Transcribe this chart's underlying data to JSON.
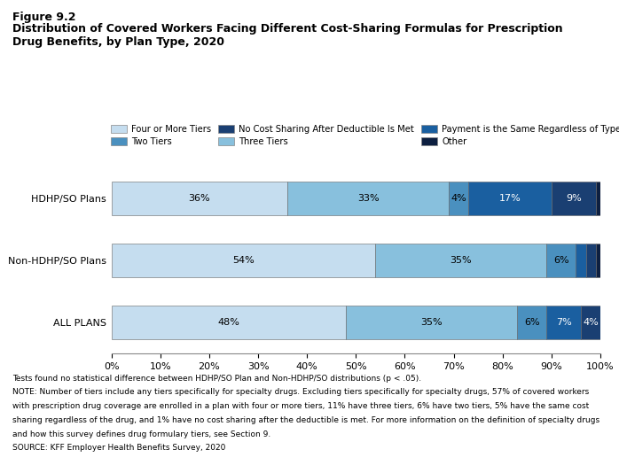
{
  "figure_label": "Figure 9.2",
  "title_line1": "Distribution of Covered Workers Facing Different Cost-Sharing Formulas for Prescription",
  "title_line2": "Drug Benefits, by Plan Type, 2020",
  "plans": [
    "HDHP/SO Plans",
    "Non-HDHP/SO Plans",
    "ALL PLANS"
  ],
  "categories": [
    "Four or More Tiers",
    "Three Tiers",
    "Two Tiers",
    "Payment is the Same Regardless of Type of Drug",
    "No Cost Sharing After Deductible Is Met",
    "Other"
  ],
  "colors": [
    "#c5ddef",
    "#88c0dd",
    "#4a90bf",
    "#1a5fa0",
    "#1a3f72",
    "#0d1f40"
  ],
  "data": {
    "HDHP/SO Plans": [
      36,
      33,
      4,
      17,
      9,
      1
    ],
    "Non-HDHP/SO Plans": [
      54,
      35,
      6,
      2,
      2,
      1
    ],
    "ALL PLANS": [
      48,
      35,
      6,
      7,
      4,
      0
    ]
  },
  "bar_labels": {
    "HDHP/SO Plans": [
      "36%",
      "33%",
      "4%",
      "17%",
      "9%",
      ""
    ],
    "Non-HDHP/SO Plans": [
      "54%",
      "35%",
      "6%",
      "",
      "",
      ""
    ],
    "ALL PLANS": [
      "48%",
      "35%",
      "6%",
      "7%",
      "4%",
      ""
    ]
  },
  "label_colors": {
    "HDHP/SO Plans": [
      "black",
      "black",
      "black",
      "white",
      "white",
      "white"
    ],
    "Non-HDHP/SO Plans": [
      "black",
      "black",
      "black",
      "white",
      "white",
      "white"
    ],
    "ALL PLANS": [
      "black",
      "black",
      "black",
      "white",
      "white",
      "white"
    ]
  },
  "notes": [
    "Tests found no statistical difference between HDHP/SO Plan and Non-HDHP/SO distributions (p < .05).",
    "NOTE: Number of tiers include any tiers specifically for specialty drugs. Excluding tiers specifically for specialty drugs, 57% of covered workers",
    "with prescription drug coverage are enrolled in a plan with four or more tiers, 11% have three tiers, 6% have two tiers, 5% have the same cost",
    "sharing regardless of the drug, and 1% have no cost sharing after the deductible is met. For more information on the definition of specialty drugs",
    "and how this survey defines drug formulary tiers, see Section 9.",
    "SOURCE: KFF Employer Health Benefits Survey, 2020"
  ]
}
